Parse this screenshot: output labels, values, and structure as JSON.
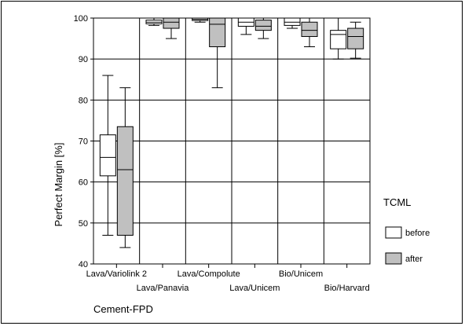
{
  "chart_data": {
    "type": "box",
    "ylabel": "Perfect Margin [%]",
    "xlabel": "Cement-FPD",
    "ylim": [
      40,
      100
    ],
    "yticks": [
      40,
      50,
      60,
      70,
      80,
      90,
      100
    ],
    "grid": true,
    "legend": {
      "title": "TCML",
      "placement": "right"
    },
    "categories": [
      "Lava/Variolink 2",
      "Lava/Panavia",
      "Lava/Compolute",
      "Lava/Unicem",
      "Bio/Unicem",
      "Bio/Harvard"
    ],
    "series": [
      {
        "name": "before",
        "color": "#ffffff",
        "boxes": [
          {
            "min": 47,
            "q1": 61.5,
            "median": 66,
            "q3": 71.5,
            "max": 86
          },
          {
            "min": 98.2,
            "q1": 98.6,
            "median": 99,
            "q3": 99.5,
            "max": 100
          },
          {
            "min": 99,
            "q1": 99.4,
            "median": 99.7,
            "q3": 100,
            "max": 100
          },
          {
            "min": 96,
            "q1": 98,
            "median": 99,
            "q3": 100,
            "max": 100
          },
          {
            "min": 97.5,
            "q1": 98.2,
            "median": 99,
            "q3": 100,
            "max": 100
          },
          {
            "min": 90,
            "q1": 92.5,
            "median": 96,
            "q3": 97,
            "max": 100
          }
        ]
      },
      {
        "name": "after",
        "color": "#c0c0c0",
        "boxes": [
          {
            "min": 44,
            "q1": 47,
            "median": 63,
            "q3": 73.5,
            "max": 83
          },
          {
            "min": 95,
            "q1": 97.5,
            "median": 99,
            "q3": 100,
            "max": 100
          },
          {
            "min": 83,
            "q1": 93,
            "median": 98.5,
            "q3": 100,
            "max": 100
          },
          {
            "min": 95,
            "q1": 97,
            "median": 98,
            "q3": 99.5,
            "max": 100
          },
          {
            "min": 93,
            "q1": 95.5,
            "median": 97,
            "q3": 99,
            "max": 100
          },
          {
            "min": 90.2,
            "q1": 92.5,
            "median": 95.5,
            "q3": 97.5,
            "max": 99
          }
        ]
      }
    ]
  }
}
